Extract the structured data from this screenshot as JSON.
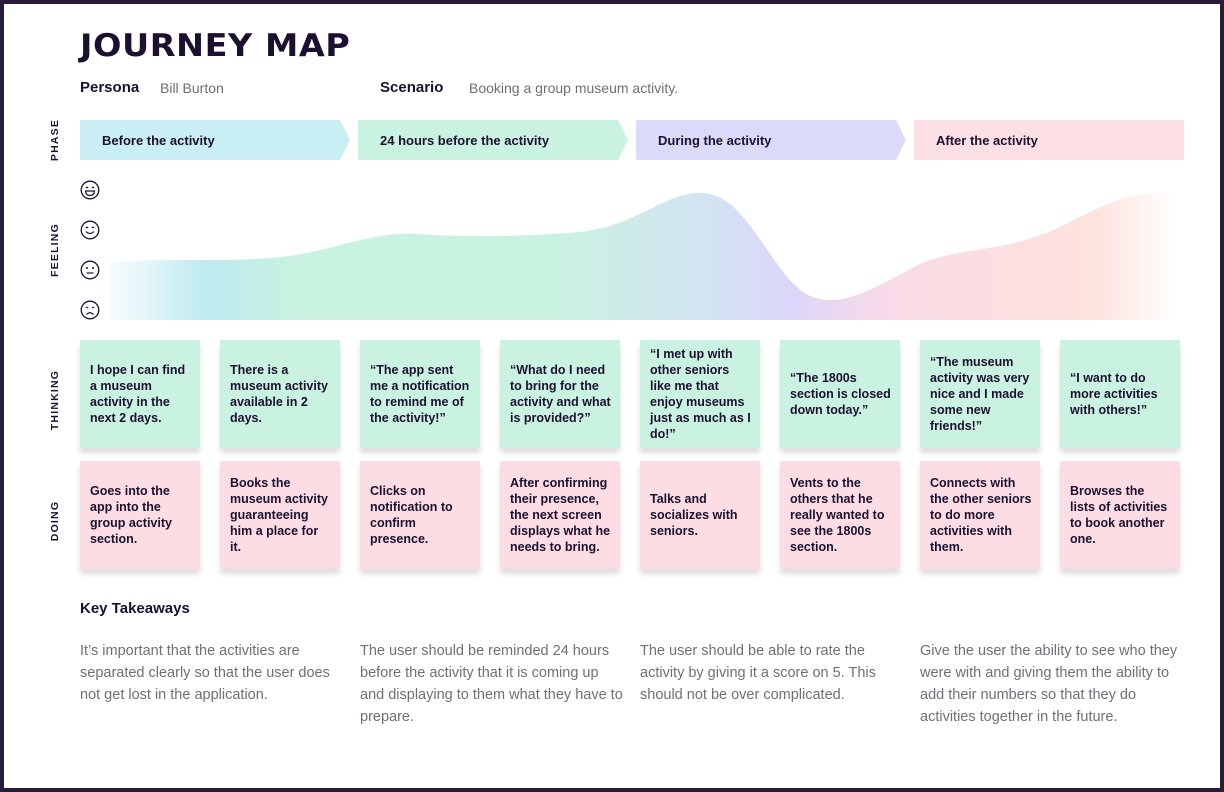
{
  "title": "JOURNEY MAP",
  "persona": {
    "label": "Persona",
    "value": "Bill Burton"
  },
  "scenario": {
    "label": "Scenario",
    "value": "Booking a group museum activity."
  },
  "row_labels": {
    "phase": "PHASE",
    "feeling": "FEELING",
    "thinking": "THINKING",
    "doing": "DOING"
  },
  "phases": [
    {
      "label": "Before the activity",
      "color": "#c9eef3"
    },
    {
      "label": "24 hours before the activity",
      "color": "#c9f2e0"
    },
    {
      "label": "During the activity",
      "color": "#dcdafa"
    },
    {
      "label": "After the activity",
      "color": "#fde0e5"
    }
  ],
  "feeling_icons": [
    "very-happy-face-icon",
    "happy-face-icon",
    "neutral-face-icon",
    "sad-face-icon"
  ],
  "thinking": [
    "I hope I can find a museum activity in the next 2 days.",
    "There is a museum activity available in 2 days.",
    "“The app sent me a notification to remind me of the activity!”",
    "“What do I need to bring for the activity and what is provided?”",
    "“I met up with other seniors like me that enjoy museums just as much as I do!”",
    "“The 1800s section is closed down today.”",
    "“The museum activity was very nice and I made some new friends!”",
    "“I want to do more activities with others!”"
  ],
  "doing": [
    "Goes into the app into the group activity section.",
    "Books the museum activity guaranteeing him a place for it.",
    "Clicks on notification to confirm presence.",
    "After confirming their presence, the next screen displays what he needs to bring.",
    "Talks and socializes with seniors.",
    "Vents to the others that he really wanted to see the 1800s section.",
    "Connects with the other seniors to do more activities with them.",
    "Browses the lists of activities to book another one."
  ],
  "takeaways": {
    "heading": "Key Takeaways",
    "items": [
      "It’s important that the activities are separated clearly so that the user does not get lost in the application.",
      "The user should be reminded 24 hours before the activity that it is coming up and displaying to them what they have to prepare.",
      "The user should be able to rate the activity by giving it a score on 5. This should not be over complicated.",
      "Give the user the ability to see who they were with and giving them the ability to add their numbers so that they do activities together in the future."
    ]
  },
  "colors": {
    "text_dark": "#1c1030",
    "text_muted": "#6f6f78",
    "thinking_note": "#c9f2e0",
    "doing_note": "#fcdde3",
    "frame": "#2a1d3a"
  }
}
